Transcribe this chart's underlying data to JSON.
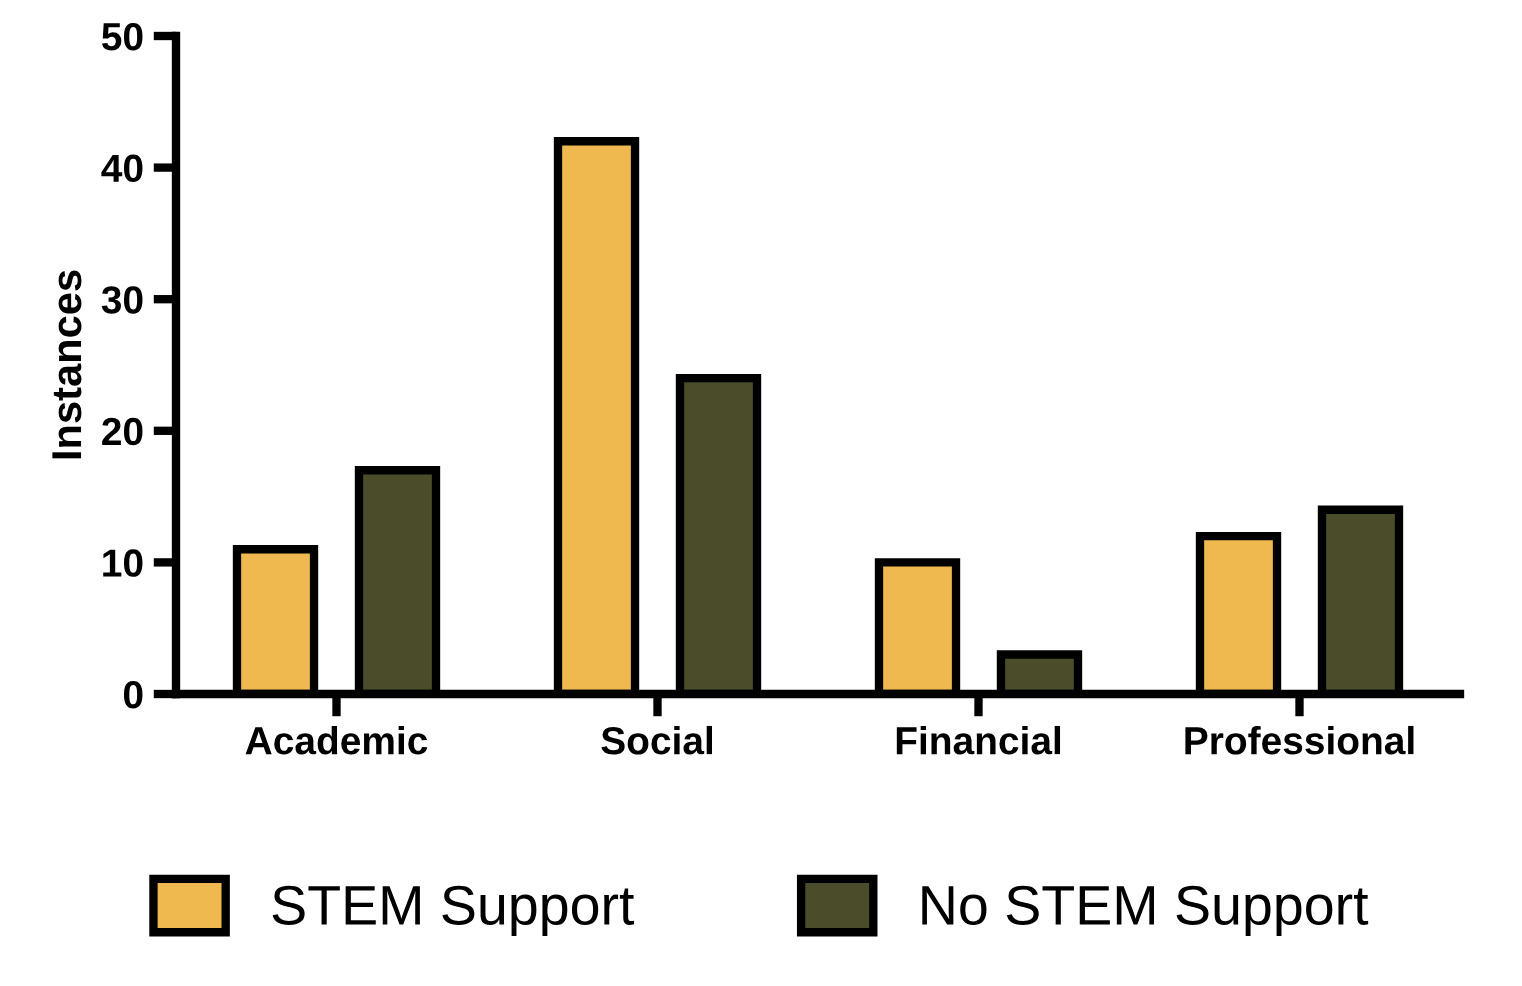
{
  "chart_data": {
    "type": "bar",
    "ylabel": "Instances",
    "categories": [
      "Academic",
      "Social",
      "Financial",
      "Professional"
    ],
    "series": [
      {
        "name": "STEM Support",
        "color": "#f0b94f",
        "values": [
          11,
          42,
          10,
          12
        ]
      },
      {
        "name": "No STEM Support",
        "color": "#4a4c2a",
        "values": [
          17,
          24,
          3,
          14
        ]
      }
    ],
    "ylim": [
      0,
      50
    ],
    "yticks": [
      0,
      10,
      20,
      30,
      40,
      50
    ],
    "grid": false,
    "legend": "bottom"
  }
}
